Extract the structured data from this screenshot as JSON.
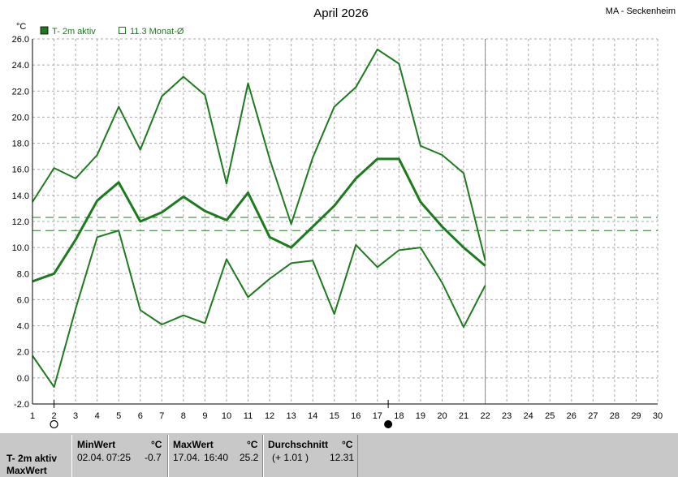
{
  "header": {
    "title": "April 2026",
    "station": "MA - Seckenheim",
    "unit": "°C"
  },
  "legend": [
    {
      "label": "T- 2m aktiv",
      "style": "filled",
      "color": "#1e7a1e"
    },
    {
      "label": "11.3 Monat-Ø",
      "style": "outline",
      "color": "#1e7a1e"
    }
  ],
  "chart_data": {
    "type": "line",
    "title": "April 2026",
    "ylabel": "°C",
    "xlim": [
      1,
      30
    ],
    "ylim": [
      -2,
      26
    ],
    "grid": true,
    "x": [
      1,
      2,
      3,
      4,
      5,
      6,
      7,
      8,
      9,
      10,
      11,
      12,
      13,
      14,
      15,
      16,
      17,
      18,
      19,
      20,
      21,
      22
    ],
    "x_ticks": [
      "1",
      "2",
      "3",
      "4",
      "5",
      "6",
      "7",
      "8",
      "9",
      "10",
      "11",
      "12",
      "13",
      "14",
      "15",
      "16",
      "17",
      "18",
      "19",
      "20",
      "21",
      "22",
      "23",
      "24",
      "25",
      "26",
      "27",
      "28",
      "29",
      "30"
    ],
    "y_ticks": [
      "-2.0",
      "0.0",
      "2.0",
      "4.0",
      "6.0",
      "8.0",
      "10.0",
      "12.0",
      "14.0",
      "16.0",
      "18.0",
      "20.0",
      "22.0",
      "24.0",
      "26.0"
    ],
    "current_day": 22,
    "series": [
      {
        "name": "MaxWert",
        "values": [
          13.5,
          16.1,
          15.3,
          17.1,
          20.8,
          17.5,
          21.6,
          23.1,
          21.7,
          14.9,
          22.6,
          16.8,
          11.8,
          16.9,
          20.8,
          22.3,
          25.2,
          24.1,
          17.8,
          17.1,
          15.7,
          9.0
        ]
      },
      {
        "name": "T- 2m aktiv",
        "values": [
          7.4,
          8.0,
          10.6,
          13.6,
          15.0,
          12.0,
          12.7,
          13.9,
          12.8,
          12.1,
          14.2,
          10.8,
          10.0,
          11.6,
          13.2,
          15.3,
          16.8,
          16.8,
          13.5,
          11.6,
          10.0,
          8.6
        ]
      },
      {
        "name": "MinWert",
        "values": [
          1.7,
          -0.7,
          5.3,
          10.8,
          11.3,
          5.2,
          4.1,
          4.8,
          4.2,
          9.1,
          6.2,
          7.6,
          8.8,
          9.0,
          4.9,
          10.2,
          8.5,
          9.8,
          10.0,
          7.3,
          3.9,
          7.1
        ]
      }
    ],
    "reference_lines": [
      12.31,
      11.3
    ],
    "symbols": [
      {
        "day": 2,
        "symbol": "open-circle"
      },
      {
        "day": 17.5,
        "symbol": "filled-circle"
      }
    ]
  },
  "stats": {
    "row1_label": "T- 2m aktiv",
    "row2_label": "MaxWert",
    "min": {
      "title": "MinWert",
      "unit": "°C",
      "date": "02.04.",
      "time": "07:25",
      "value": "-0.7"
    },
    "max": {
      "title": "MaxWert",
      "unit": "°C",
      "date": "17.04.",
      "time": "16:40",
      "value": "25.2"
    },
    "avg": {
      "title": "Durchschnitt",
      "unit": "°C",
      "delta": "(+ 1.01 )",
      "value": "12.31"
    }
  }
}
